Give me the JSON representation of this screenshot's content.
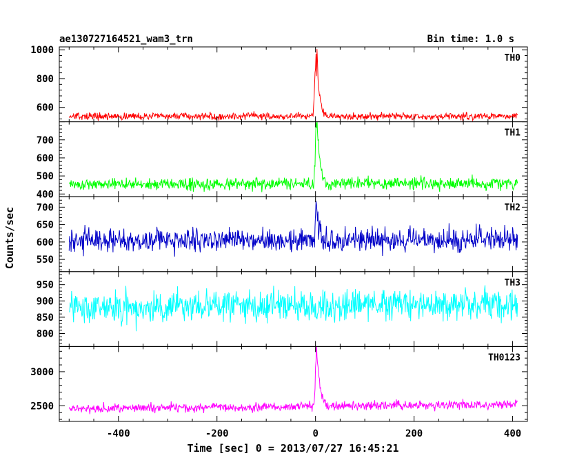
{
  "header": {
    "left": "ae130727164521_wam3_trn",
    "right": "Bin time: 1.0 s"
  },
  "axes": {
    "xlabel": "Time [sec] 0 = 2013/07/27 16:45:21",
    "ylabel": "Counts/sec"
  },
  "chart_data": {
    "type": "line",
    "x": {
      "start": -500,
      "end": 410,
      "step": 1,
      "range": [
        -520,
        430
      ],
      "ticks": [
        -400,
        -200,
        0,
        200,
        400
      ]
    },
    "series": [
      {
        "name": "TH0",
        "color": "#ff0000",
        "ylim": [
          500,
          1020
        ],
        "yticks": [
          600,
          800,
          1000
        ],
        "base": 538,
        "noise": 17,
        "drift": 0,
        "burst": [
          [
            -5,
            0
          ],
          [
            -3,
            120
          ],
          [
            -1,
            300
          ],
          [
            0,
            330
          ],
          [
            1,
            430
          ],
          [
            2,
            260
          ],
          [
            3,
            470
          ],
          [
            4,
            390
          ],
          [
            5,
            280
          ],
          [
            6,
            200
          ],
          [
            8,
            150
          ],
          [
            10,
            100
          ],
          [
            13,
            60
          ],
          [
            18,
            25
          ],
          [
            25,
            0
          ]
        ]
      },
      {
        "name": "TH1",
        "color": "#00ff00",
        "ylim": [
          385,
          800
        ],
        "yticks": [
          400,
          500,
          600,
          700
        ],
        "base": 455,
        "noise": 22,
        "drift": 5,
        "burst": [
          [
            -4,
            0
          ],
          [
            -1,
            120
          ],
          [
            0,
            240
          ],
          [
            1,
            320
          ],
          [
            2,
            300
          ],
          [
            3,
            340
          ],
          [
            4,
            280
          ],
          [
            6,
            210
          ],
          [
            8,
            140
          ],
          [
            11,
            80
          ],
          [
            15,
            40
          ],
          [
            22,
            0
          ]
        ]
      },
      {
        "name": "TH2",
        "color": "#0000c8",
        "ylim": [
          515,
          730
        ],
        "yticks": [
          550,
          600,
          650,
          700
        ],
        "base": 605,
        "noise": 23,
        "drift": 0,
        "burst": [
          [
            -2,
            0
          ],
          [
            0,
            70
          ],
          [
            2,
            110
          ],
          [
            4,
            60
          ],
          [
            8,
            25
          ],
          [
            14,
            0
          ]
        ]
      },
      {
        "name": "TH3",
        "color": "#00ffff",
        "ylim": [
          760,
          990
        ],
        "yticks": [
          800,
          850,
          900,
          950
        ],
        "base": 880,
        "noise": 32,
        "drift": 8,
        "burst": []
      },
      {
        "name": "TH0123",
        "color": "#ff00ff",
        "ylim": [
          2270,
          3370
        ],
        "yticks": [
          2500,
          3000
        ],
        "base": 2460,
        "noise": 45,
        "drift": 60,
        "burst": [
          [
            -4,
            0
          ],
          [
            -1,
            250
          ],
          [
            0,
            500
          ],
          [
            1,
            700
          ],
          [
            2,
            850
          ],
          [
            3,
            780
          ],
          [
            5,
            600
          ],
          [
            7,
            420
          ],
          [
            9,
            300
          ],
          [
            12,
            180
          ],
          [
            17,
            80
          ],
          [
            24,
            0
          ]
        ]
      }
    ]
  }
}
